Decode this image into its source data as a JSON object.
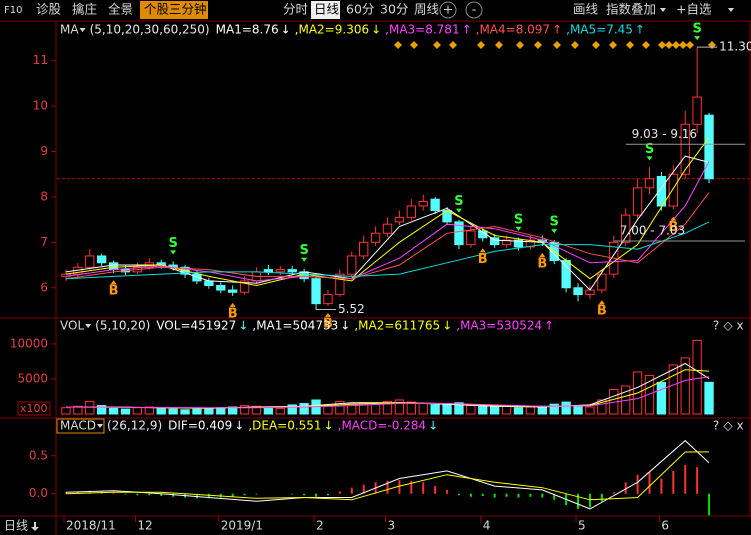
{
  "toolbar": {
    "left": [
      "F10",
      "诊股",
      "擒庄",
      "全景"
    ],
    "highlight": "个股三分钟",
    "periods": [
      "分时",
      "日线",
      "60分",
      "30分",
      "周线"
    ],
    "zoom": [
      "+",
      "-"
    ],
    "right": [
      "画线",
      "指数叠加",
      "+自选"
    ]
  },
  "panel_controls": [
    "?",
    "◇",
    "x"
  ],
  "period_switch": "日线",
  "chart_data": [
    {
      "type": "candlestick",
      "indicator": "MA",
      "params": "(5,10,20,30,60,250)",
      "categories": [
        "2018/11",
        null,
        null,
        null,
        null,
        null,
        "12",
        null,
        null,
        null,
        null,
        null,
        null,
        "2019/1",
        null,
        null,
        null,
        null,
        null,
        null,
        null,
        "2",
        null,
        null,
        null,
        null,
        null,
        "3",
        null,
        null,
        null,
        null,
        null,
        null,
        null,
        "4",
        null,
        null,
        null,
        null,
        null,
        null,
        null,
        "5",
        null,
        null,
        null,
        null,
        null,
        null,
        "6",
        null,
        null,
        null,
        null
      ],
      "open": [
        6.25,
        6.3,
        6.45,
        6.7,
        6.55,
        6.4,
        6.35,
        6.45,
        6.55,
        6.5,
        6.45,
        6.3,
        6.15,
        6.05,
        5.95,
        5.9,
        6.15,
        6.4,
        6.35,
        6.4,
        6.35,
        6.2,
        5.65,
        5.85,
        6.3,
        6.7,
        7.0,
        7.2,
        7.45,
        7.55,
        7.8,
        7.95,
        7.7,
        7.45,
        6.95,
        7.25,
        7.1,
        6.95,
        7.05,
        6.9,
        7.05,
        7.0,
        6.6,
        6.0,
        5.85,
        5.95,
        6.3,
        7.0,
        7.6,
        8.2,
        8.45,
        7.8,
        8.5,
        9.6,
        9.8
      ],
      "high": [
        6.4,
        6.55,
        6.85,
        6.75,
        6.6,
        6.5,
        6.55,
        6.65,
        6.62,
        6.58,
        6.5,
        6.38,
        6.22,
        6.12,
        6.05,
        6.25,
        6.45,
        6.5,
        6.48,
        6.48,
        6.42,
        6.25,
        5.95,
        6.4,
        6.8,
        7.15,
        7.35,
        7.55,
        7.7,
        7.95,
        8.05,
        8.0,
        7.78,
        7.5,
        7.35,
        7.3,
        7.18,
        7.15,
        7.1,
        7.15,
        7.15,
        7.05,
        6.65,
        6.1,
        6.05,
        6.4,
        7.15,
        7.75,
        8.4,
        8.65,
        8.55,
        8.7,
        9.9,
        11.3,
        9.85
      ],
      "low": [
        6.15,
        6.22,
        6.4,
        6.48,
        6.32,
        6.28,
        6.3,
        6.4,
        6.42,
        6.38,
        6.22,
        6.08,
        5.98,
        5.88,
        5.82,
        5.85,
        6.08,
        6.28,
        6.28,
        6.28,
        6.12,
        5.52,
        5.6,
        5.8,
        6.22,
        6.62,
        6.92,
        7.12,
        7.38,
        7.48,
        7.7,
        7.62,
        7.38,
        6.85,
        6.88,
        7.02,
        6.88,
        6.88,
        6.82,
        6.85,
        6.92,
        6.52,
        5.9,
        5.7,
        5.75,
        5.88,
        6.22,
        6.92,
        7.5,
        8.05,
        7.7,
        7.72,
        8.4,
        9.4,
        8.3
      ],
      "close": [
        6.3,
        6.45,
        6.7,
        6.55,
        6.4,
        6.35,
        6.45,
        6.55,
        6.5,
        6.45,
        6.3,
        6.15,
        6.05,
        5.95,
        5.9,
        6.15,
        6.35,
        6.35,
        6.4,
        6.35,
        6.2,
        5.65,
        5.85,
        6.3,
        6.7,
        7.0,
        7.2,
        7.4,
        7.55,
        7.8,
        7.9,
        7.7,
        7.45,
        6.95,
        7.25,
        7.1,
        6.95,
        7.05,
        6.9,
        7.05,
        7.0,
        6.6,
        6.0,
        5.85,
        5.95,
        6.3,
        7.0,
        7.6,
        8.2,
        8.4,
        7.8,
        8.5,
        9.6,
        10.2,
        8.4
      ],
      "up_color": "#ff3232",
      "down_color": "#54fcfc",
      "price_line_color": "#c00000",
      "ylim": [
        5.4,
        11.5
      ],
      "yticks": [
        6,
        7,
        8,
        9,
        10,
        11
      ],
      "series": [
        {
          "name": "MA1=8.76",
          "trend": "↓",
          "color": "#ffffff",
          "x": [
            0,
            4,
            8,
            12,
            16,
            20,
            24,
            28,
            32,
            36,
            40,
            44,
            48,
            52,
            54
          ],
          "values": [
            6.35,
            6.5,
            6.5,
            6.15,
            6.1,
            6.35,
            6.2,
            7.35,
            7.75,
            7.05,
            7.0,
            5.95,
            7.5,
            8.9,
            8.76
          ]
        },
        {
          "name": ",MA2=9.306",
          "trend": "↓",
          "color": "#ffff00",
          "x": [
            0,
            4,
            8,
            12,
            16,
            20,
            24,
            28,
            32,
            36,
            40,
            44,
            48,
            52,
            54
          ],
          "values": [
            6.3,
            6.45,
            6.5,
            6.25,
            6.05,
            6.3,
            6.15,
            7.0,
            7.7,
            7.15,
            7.0,
            6.2,
            6.95,
            8.6,
            9.306
          ]
        },
        {
          "name": ",MA3=8.781",
          "trend": "↑",
          "color": "#ff40ff",
          "x": [
            0,
            4,
            8,
            12,
            16,
            20,
            24,
            28,
            32,
            36,
            40,
            44,
            48,
            52,
            54
          ],
          "values": [
            6.25,
            6.4,
            6.48,
            6.35,
            6.15,
            6.25,
            6.2,
            6.65,
            7.4,
            7.3,
            7.05,
            6.55,
            6.6,
            7.8,
            8.781
          ]
        },
        {
          "name": ",MA4=8.097",
          "trend": "↑",
          "color": "#ff5050",
          "x": [
            0,
            4,
            8,
            12,
            16,
            20,
            24,
            28,
            32,
            36,
            40,
            44,
            48,
            52,
            54
          ],
          "values": [
            6.2,
            6.35,
            6.45,
            6.4,
            6.25,
            6.25,
            6.2,
            6.5,
            7.2,
            7.35,
            7.1,
            6.75,
            6.55,
            7.4,
            8.097
          ]
        },
        {
          "name": ",MA5=7.45",
          "trend": "↑",
          "color": "#00e0e0",
          "x": [
            0,
            4,
            8,
            12,
            16,
            20,
            24,
            28,
            32,
            36,
            40,
            44,
            48,
            52,
            54
          ],
          "values": [
            6.2,
            6.25,
            6.3,
            6.35,
            6.35,
            6.3,
            6.25,
            6.3,
            6.55,
            6.8,
            6.95,
            6.95,
            6.85,
            7.2,
            7.45
          ]
        }
      ],
      "signals": [
        {
          "x": 9,
          "label": "S",
          "position": "above",
          "color": "#33ff33"
        },
        {
          "x": 20,
          "label": "S",
          "position": "above",
          "color": "#33ff33"
        },
        {
          "x": 33,
          "label": "S",
          "position": "above",
          "color": "#33ff33"
        },
        {
          "x": 38,
          "label": "S",
          "position": "above",
          "color": "#33ff33"
        },
        {
          "x": 41,
          "label": "S",
          "position": "above",
          "color": "#33ff33"
        },
        {
          "x": 49,
          "label": "S",
          "position": "above",
          "color": "#33ff33"
        },
        {
          "x": 53,
          "label": "S",
          "position": "above",
          "color": "#33ff33"
        },
        {
          "x": 4,
          "label": "B",
          "position": "below",
          "color": "#ff9900"
        },
        {
          "x": 14,
          "label": "B",
          "position": "below",
          "color": "#ff9900"
        },
        {
          "x": 22,
          "label": "B",
          "position": "below",
          "color": "#ff9900"
        },
        {
          "x": 35,
          "label": "B",
          "position": "below",
          "color": "#ff9900"
        },
        {
          "x": 40,
          "label": "B",
          "position": "below",
          "color": "#ff9900"
        },
        {
          "x": 45,
          "label": "B",
          "position": "below",
          "color": "#ff9900"
        },
        {
          "x": 51,
          "label": "B",
          "position": "below",
          "color": "#ff9900"
        }
      ],
      "annotations": [
        {
          "text": "11.30",
          "x": 53,
          "y": 11.3,
          "align": "right"
        },
        {
          "text": "5.52",
          "x": 21,
          "y": 5.52,
          "align": "right"
        },
        {
          "text": "9.03 - 9.16",
          "x": 47,
          "y": 9.16,
          "align": "above"
        },
        {
          "text": "7.00 - 7.03",
          "x": 46,
          "y": 7.03,
          "align": "above"
        }
      ]
    },
    {
      "type": "bar",
      "indicator": "VOL",
      "params": "(5,10,20)",
      "current": "VOL=451927",
      "current_trend": "↓",
      "unit_label": "x100",
      "values": [
        900,
        1100,
        1800,
        1200,
        800,
        700,
        900,
        1000,
        800,
        700,
        600,
        700,
        800,
        900,
        1000,
        1200,
        1100,
        900,
        800,
        1300,
        1500,
        2000,
        1200,
        1800,
        1500,
        1600,
        1400,
        1800,
        2000,
        1700,
        1500,
        1300,
        1400,
        1600,
        1200,
        1100,
        1000,
        1200,
        900,
        1000,
        1100,
        1400,
        1700,
        1200,
        1000,
        2000,
        3500,
        4000,
        6000,
        5500,
        4500,
        7000,
        8000,
        10500,
        4519
      ],
      "ylim": [
        0,
        11700
      ],
      "yticks": [
        5000,
        10000
      ],
      "series": [
        {
          "name": ",MA1=504733",
          "trend": "↓",
          "color": "#ffffff",
          "x": [
            0,
            4,
            8,
            12,
            16,
            20,
            24,
            28,
            32,
            36,
            40,
            44,
            48,
            52,
            54
          ],
          "values": [
            1000,
            1000,
            900,
            800,
            1000,
            1100,
            1600,
            1600,
            1400,
            1100,
            1000,
            1300,
            3800,
            7200,
            5047
          ]
        },
        {
          "name": ",MA2=611765",
          "trend": "↓",
          "color": "#ffff00",
          "x": [
            0,
            4,
            8,
            12,
            16,
            20,
            24,
            28,
            32,
            36,
            40,
            44,
            48,
            52,
            54
          ],
          "values": [
            1000,
            950,
            900,
            850,
            950,
            1050,
            1400,
            1600,
            1500,
            1200,
            1050,
            1200,
            3000,
            6300,
            6118
          ]
        },
        {
          "name": ",MA3=530524",
          "trend": "↑",
          "color": "#ff40ff",
          "x": [
            0,
            4,
            8,
            12,
            16,
            20,
            24,
            28,
            32,
            36,
            40,
            44,
            48,
            52,
            54
          ],
          "values": [
            1000,
            950,
            920,
            880,
            900,
            1000,
            1200,
            1500,
            1500,
            1300,
            1100,
            1150,
            2200,
            4800,
            5305
          ]
        }
      ]
    },
    {
      "type": "macd",
      "indicator": "MACD",
      "params": "(26,12,9)",
      "current": ",MACD=-0.284",
      "current_trend": "↓",
      "values": [
        0.02,
        0.03,
        0.04,
        0.03,
        0.01,
        -0.01,
        -0.02,
        -0.02,
        -0.03,
        -0.04,
        -0.05,
        -0.06,
        -0.06,
        -0.05,
        -0.04,
        -0.02,
        -0.01,
        0.0,
        0.0,
        -0.01,
        -0.02,
        -0.04,
        -0.02,
        0.03,
        0.08,
        0.12,
        0.15,
        0.17,
        0.18,
        0.17,
        0.15,
        0.1,
        0.05,
        -0.02,
        -0.04,
        -0.03,
        -0.05,
        -0.04,
        -0.05,
        -0.04,
        -0.05,
        -0.08,
        -0.15,
        -0.2,
        -0.18,
        -0.1,
        0.02,
        0.15,
        0.25,
        0.28,
        0.2,
        0.3,
        0.38,
        0.35,
        -0.284
      ],
      "up_color": "#ff3232",
      "down_color": "#00e000",
      "ylim": [
        -0.28,
        0.76
      ],
      "yticks": [
        {
          "value": 0,
          "label": "0.0"
        },
        0.5
      ],
      "series": [
        {
          "name": "DIF=0.409",
          "trend": "↓",
          "color": "#ffffff",
          "x": [
            0,
            4,
            8,
            12,
            16,
            20,
            24,
            28,
            32,
            36,
            40,
            44,
            48,
            52,
            54
          ],
          "values": [
            0.02,
            0.04,
            0.0,
            -0.05,
            -0.1,
            -0.05,
            -0.05,
            0.2,
            0.3,
            0.1,
            0.05,
            -0.2,
            0.15,
            0.7,
            0.409
          ]
        },
        {
          "name": ",DEA=0.551",
          "trend": "↓",
          "color": "#ffff00",
          "x": [
            0,
            4,
            8,
            12,
            16,
            20,
            24,
            28,
            32,
            36,
            40,
            44,
            48,
            52,
            54
          ],
          "values": [
            0.0,
            0.02,
            0.02,
            -0.02,
            -0.06,
            -0.05,
            -0.08,
            0.1,
            0.25,
            0.15,
            0.08,
            -0.08,
            -0.05,
            0.55,
            0.551
          ]
        }
      ]
    }
  ]
}
